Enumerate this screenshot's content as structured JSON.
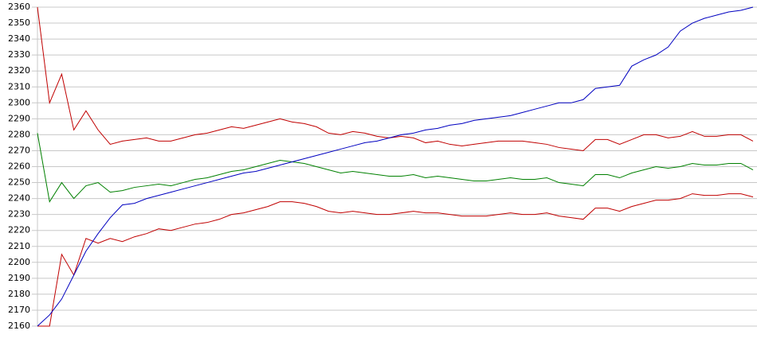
{
  "chart_data": {
    "type": "line",
    "ylim": [
      2160,
      2360
    ],
    "yticks": [
      2160,
      2170,
      2180,
      2190,
      2200,
      2210,
      2220,
      2230,
      2240,
      2250,
      2260,
      2270,
      2280,
      2290,
      2300,
      2310,
      2320,
      2330,
      2340,
      2350,
      2360
    ],
    "grid": true,
    "series": [
      {
        "color": "#c00000",
        "values": [
          2160,
          2160,
          2205,
          2192,
          2215,
          2212,
          2215,
          2213,
          2216,
          2218,
          2221,
          2220,
          2222,
          2224,
          2225,
          2227,
          2230,
          2231,
          2233,
          2235,
          2238,
          2238,
          2237,
          2235,
          2232,
          2231,
          2232,
          2231,
          2230,
          2230,
          2231,
          2232,
          2231,
          2231,
          2230,
          2229,
          2229,
          2229,
          2230,
          2231,
          2230,
          2230,
          2231,
          2229,
          2228,
          2227,
          2234,
          2234,
          2232,
          2235,
          2237,
          2239,
          2239,
          2240,
          2243,
          2242,
          2242,
          2243,
          2243,
          2241
        ]
      },
      {
        "color": "#c00000",
        "values": [
          2360,
          2300,
          2318,
          2283,
          2295,
          2283,
          2274,
          2276,
          2277,
          2278,
          2276,
          2276,
          2278,
          2280,
          2281,
          2283,
          2285,
          2284,
          2286,
          2288,
          2290,
          2288,
          2287,
          2285,
          2281,
          2280,
          2282,
          2281,
          2279,
          2278,
          2279,
          2278,
          2275,
          2276,
          2274,
          2273,
          2274,
          2275,
          2276,
          2276,
          2276,
          2275,
          2274,
          2272,
          2271,
          2270,
          2277,
          2277,
          2274,
          2277,
          2280,
          2280,
          2278,
          2279,
          2282,
          2279,
          2279,
          2280,
          2280,
          2276
        ]
      },
      {
        "color": "#008000",
        "values": [
          2281,
          2238,
          2250,
          2240,
          2248,
          2250,
          2244,
          2245,
          2247,
          2248,
          2249,
          2248,
          2250,
          2252,
          2253,
          2255,
          2257,
          2258,
          2260,
          2262,
          2264,
          2263,
          2262,
          2260,
          2258,
          2256,
          2257,
          2256,
          2255,
          2254,
          2254,
          2255,
          2253,
          2254,
          2253,
          2252,
          2251,
          2251,
          2252,
          2253,
          2252,
          2252,
          2253,
          2250,
          2249,
          2248,
          2255,
          2255,
          2253,
          2256,
          2258,
          2260,
          2259,
          2260,
          2262,
          2261,
          2261,
          2262,
          2262,
          2258
        ]
      },
      {
        "color": "#0000c0",
        "values": [
          2160,
          2167,
          2177,
          2192,
          2207,
          2218,
          2228,
          2236,
          2237,
          2240,
          2242,
          2244,
          2246,
          2248,
          2250,
          2252,
          2254,
          2256,
          2257,
          2259,
          2261,
          2263,
          2265,
          2267,
          2269,
          2271,
          2273,
          2275,
          2276,
          2278,
          2280,
          2281,
          2283,
          2284,
          2286,
          2287,
          2289,
          2290,
          2291,
          2292,
          2294,
          2296,
          2298,
          2300,
          2300,
          2302,
          2309,
          2310,
          2311,
          2323,
          2327,
          2330,
          2335,
          2345,
          2350,
          2353,
          2355,
          2357,
          2358,
          2360
        ]
      }
    ]
  }
}
